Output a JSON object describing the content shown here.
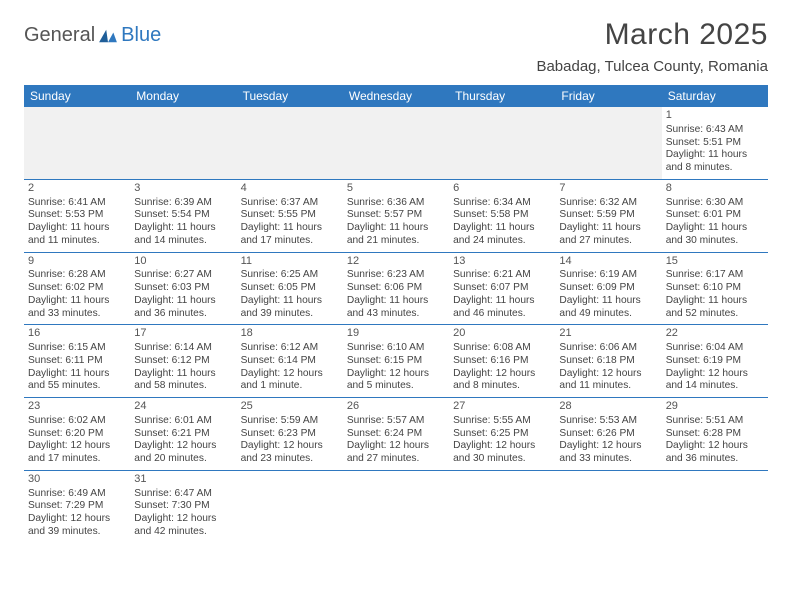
{
  "logo": {
    "word1": "General",
    "word2": "Blue"
  },
  "title": "March 2025",
  "location": "Babadag, Tulcea County, Romania",
  "colors": {
    "header_bg": "#2f78bf",
    "border": "#2f78bf",
    "blank_bg": "#f1f1f1",
    "text": "#444"
  },
  "day_headers": [
    "Sunday",
    "Monday",
    "Tuesday",
    "Wednesday",
    "Thursday",
    "Friday",
    "Saturday"
  ],
  "first_weekday": 6,
  "days": [
    {
      "n": 1,
      "sr": "6:43 AM",
      "ss": "5:51 PM",
      "dl": "11 hours and 8 minutes."
    },
    {
      "n": 2,
      "sr": "6:41 AM",
      "ss": "5:53 PM",
      "dl": "11 hours and 11 minutes."
    },
    {
      "n": 3,
      "sr": "6:39 AM",
      "ss": "5:54 PM",
      "dl": "11 hours and 14 minutes."
    },
    {
      "n": 4,
      "sr": "6:37 AM",
      "ss": "5:55 PM",
      "dl": "11 hours and 17 minutes."
    },
    {
      "n": 5,
      "sr": "6:36 AM",
      "ss": "5:57 PM",
      "dl": "11 hours and 21 minutes."
    },
    {
      "n": 6,
      "sr": "6:34 AM",
      "ss": "5:58 PM",
      "dl": "11 hours and 24 minutes."
    },
    {
      "n": 7,
      "sr": "6:32 AM",
      "ss": "5:59 PM",
      "dl": "11 hours and 27 minutes."
    },
    {
      "n": 8,
      "sr": "6:30 AM",
      "ss": "6:01 PM",
      "dl": "11 hours and 30 minutes."
    },
    {
      "n": 9,
      "sr": "6:28 AM",
      "ss": "6:02 PM",
      "dl": "11 hours and 33 minutes."
    },
    {
      "n": 10,
      "sr": "6:27 AM",
      "ss": "6:03 PM",
      "dl": "11 hours and 36 minutes."
    },
    {
      "n": 11,
      "sr": "6:25 AM",
      "ss": "6:05 PM",
      "dl": "11 hours and 39 minutes."
    },
    {
      "n": 12,
      "sr": "6:23 AM",
      "ss": "6:06 PM",
      "dl": "11 hours and 43 minutes."
    },
    {
      "n": 13,
      "sr": "6:21 AM",
      "ss": "6:07 PM",
      "dl": "11 hours and 46 minutes."
    },
    {
      "n": 14,
      "sr": "6:19 AM",
      "ss": "6:09 PM",
      "dl": "11 hours and 49 minutes."
    },
    {
      "n": 15,
      "sr": "6:17 AM",
      "ss": "6:10 PM",
      "dl": "11 hours and 52 minutes."
    },
    {
      "n": 16,
      "sr": "6:15 AM",
      "ss": "6:11 PM",
      "dl": "11 hours and 55 minutes."
    },
    {
      "n": 17,
      "sr": "6:14 AM",
      "ss": "6:12 PM",
      "dl": "11 hours and 58 minutes."
    },
    {
      "n": 18,
      "sr": "6:12 AM",
      "ss": "6:14 PM",
      "dl": "12 hours and 1 minute."
    },
    {
      "n": 19,
      "sr": "6:10 AM",
      "ss": "6:15 PM",
      "dl": "12 hours and 5 minutes."
    },
    {
      "n": 20,
      "sr": "6:08 AM",
      "ss": "6:16 PM",
      "dl": "12 hours and 8 minutes."
    },
    {
      "n": 21,
      "sr": "6:06 AM",
      "ss": "6:18 PM",
      "dl": "12 hours and 11 minutes."
    },
    {
      "n": 22,
      "sr": "6:04 AM",
      "ss": "6:19 PM",
      "dl": "12 hours and 14 minutes."
    },
    {
      "n": 23,
      "sr": "6:02 AM",
      "ss": "6:20 PM",
      "dl": "12 hours and 17 minutes."
    },
    {
      "n": 24,
      "sr": "6:01 AM",
      "ss": "6:21 PM",
      "dl": "12 hours and 20 minutes."
    },
    {
      "n": 25,
      "sr": "5:59 AM",
      "ss": "6:23 PM",
      "dl": "12 hours and 23 minutes."
    },
    {
      "n": 26,
      "sr": "5:57 AM",
      "ss": "6:24 PM",
      "dl": "12 hours and 27 minutes."
    },
    {
      "n": 27,
      "sr": "5:55 AM",
      "ss": "6:25 PM",
      "dl": "12 hours and 30 minutes."
    },
    {
      "n": 28,
      "sr": "5:53 AM",
      "ss": "6:26 PM",
      "dl": "12 hours and 33 minutes."
    },
    {
      "n": 29,
      "sr": "5:51 AM",
      "ss": "6:28 PM",
      "dl": "12 hours and 36 minutes."
    },
    {
      "n": 30,
      "sr": "6:49 AM",
      "ss": "7:29 PM",
      "dl": "12 hours and 39 minutes."
    },
    {
      "n": 31,
      "sr": "6:47 AM",
      "ss": "7:30 PM",
      "dl": "12 hours and 42 minutes."
    }
  ],
  "labels": {
    "sunrise": "Sunrise:",
    "sunset": "Sunset:",
    "daylight": "Daylight:"
  }
}
